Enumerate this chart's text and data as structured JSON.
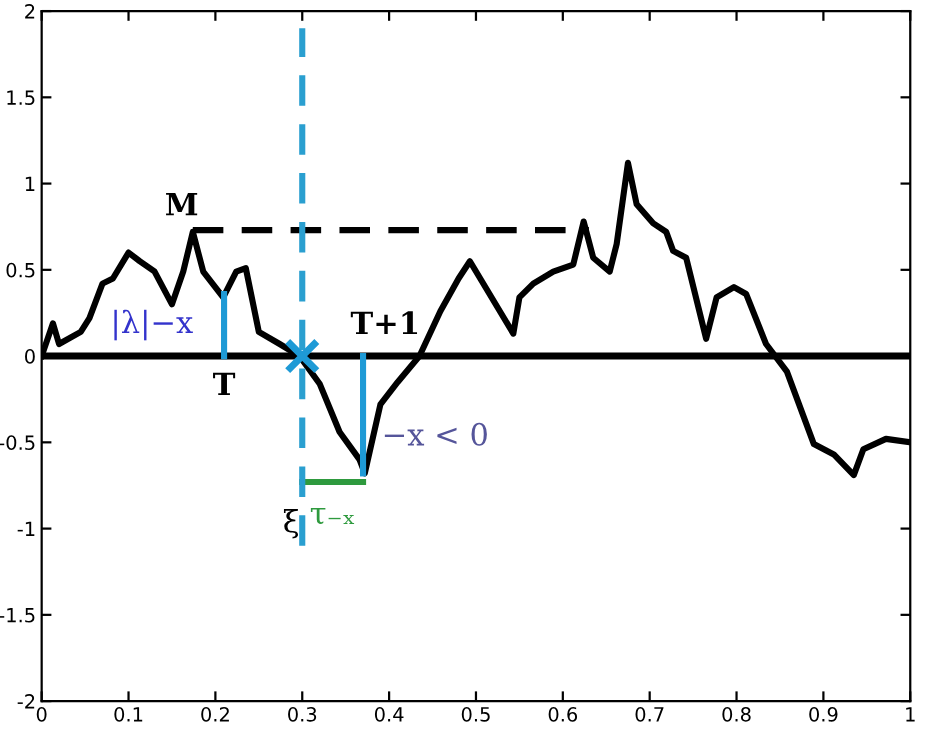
{
  "chart_data": {
    "type": "line",
    "xlim": [
      0,
      1
    ],
    "ylim": [
      -2,
      2
    ],
    "xticks": [
      0,
      0.1,
      0.2,
      0.3,
      0.4,
      0.5,
      0.6,
      0.7,
      0.8,
      0.9,
      1
    ],
    "yticks": [
      {
        "value": -2,
        "label": "-2"
      },
      {
        "value": -1.5,
        "label": "-1.5"
      },
      {
        "value": -1,
        "label": "-1"
      },
      {
        "value": -0.5,
        "label": "-0.5"
      },
      0,
      0.5,
      1,
      1.5,
      2
    ],
    "grid": false,
    "legend": false,
    "series": [
      {
        "color": "#000000",
        "line_style": "solid",
        "x": [
          0,
          0.013,
          0.02,
          0.045,
          0.055,
          0.07,
          0.082,
          0.1,
          0.113,
          0.13,
          0.15,
          0.163,
          0.174,
          0.186,
          0.209,
          0.224,
          0.235,
          0.25,
          0.274,
          0.297,
          0.32,
          0.343,
          0.366,
          0.372,
          0.39,
          0.41,
          0.435,
          0.459,
          0.48,
          0.493,
          0.543,
          0.55,
          0.566,
          0.589,
          0.612,
          0.624,
          0.635,
          0.654,
          0.662,
          0.675,
          0.685,
          0.704,
          0.719,
          0.727,
          0.742,
          0.765,
          0.777,
          0.797,
          0.811,
          0.834,
          0.858,
          0.889,
          0.912,
          0.935,
          0.946,
          0.972,
          1.0
        ],
        "values": [
          0,
          0.19,
          0.07,
          0.14,
          0.22,
          0.42,
          0.45,
          0.6,
          0.55,
          0.49,
          0.3,
          0.49,
          0.72,
          0.49,
          0.34,
          0.49,
          0.51,
          0.14,
          0.07,
          0,
          -0.16,
          -0.44,
          -0.6,
          -0.68,
          -0.28,
          -0.15,
          0,
          0.26,
          0.45,
          0.55,
          0.13,
          0.34,
          0.42,
          0.49,
          0.53,
          0.78,
          0.57,
          0.49,
          0.65,
          1.12,
          0.88,
          0.77,
          0.72,
          0.61,
          0.57,
          0.1,
          0.34,
          0.4,
          0.36,
          0.07,
          -0.09,
          -0.51,
          -0.57,
          -0.69,
          -0.54,
          -0.48,
          -0.5
        ]
      },
      {
        "type": "line",
        "color": "#000000",
        "line_style": "dashed",
        "x": [
          0.174,
          0.63
        ],
        "values": [
          0.73,
          0.73
        ]
      },
      {
        "type": "line",
        "color": "#1e9ad6",
        "line_style": "solid",
        "x": [
          0.21,
          0.21
        ],
        "values": [
          0,
          0.36
        ]
      },
      {
        "type": "line",
        "color": "#1e9ad6",
        "line_style": "solid",
        "x": [
          0.37,
          0.37
        ],
        "values": [
          0,
          -0.68
        ]
      },
      {
        "type": "line",
        "color": "#2e9a3e",
        "line_style": "solid",
        "x": [
          0.3,
          0.37
        ],
        "values": [
          -0.73,
          -0.73
        ]
      },
      {
        "type": "line",
        "color": "#2a9fd0",
        "line_style": "dashed",
        "x": [
          0.3,
          0.3
        ],
        "values": [
          -1.1,
          1.9
        ]
      },
      {
        "type": "scatter",
        "color": "#1e9ad6",
        "marker": "cross",
        "x": [
          0.3
        ],
        "values": [
          0
        ]
      }
    ],
    "ref_lines": [
      {
        "axis": "y",
        "value": 0,
        "color": "#000000",
        "line_style": "solid"
      }
    ],
    "annotations": [
      {
        "text": "M",
        "x": 0.174,
        "y": 0.72
      },
      {
        "text": "T",
        "x": 0.21,
        "y": 0
      },
      {
        "text": "T+1",
        "x": 0.37,
        "y": 0
      },
      {
        "text": "|λ|−x",
        "x": 0.21,
        "y": 0.18
      },
      {
        "text": "−x < 0",
        "x": 0.37,
        "y": -0.34
      },
      {
        "text": "ξ",
        "x": 0.3,
        "y": -0.73
      },
      {
        "text": "τ₋ₓ",
        "x": 0.335,
        "y": -0.73
      }
    ]
  }
}
